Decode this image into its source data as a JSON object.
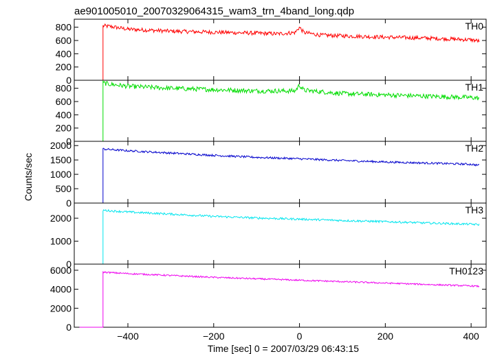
{
  "chart_data": {
    "type": "line",
    "title": "ae901005010_20070329064315_wam3_trn_4band_long.qdp",
    "xlabel": "Time [sec] 0 = 2007/03/29 06:43:15",
    "ylabel": "Counts/sec",
    "xlim": [
      -525,
      435
    ],
    "x_ticks": [
      -400,
      -200,
      0,
      200,
      400
    ],
    "onset_time": -458,
    "panels": [
      {
        "name": "TH0",
        "color": "#ff0000",
        "ylim": [
          0,
          900
        ],
        "y_ticks": [
          0,
          200,
          400,
          600,
          800
        ],
        "pre_level": 0,
        "noise": 30,
        "x": [
          -458,
          -440,
          -400,
          -300,
          -200,
          -100,
          -50,
          -10,
          0,
          10,
          50,
          100,
          200,
          300,
          400,
          420
        ],
        "y": [
          820,
          810,
          770,
          740,
          725,
          710,
          700,
          720,
          800,
          720,
          680,
          670,
          650,
          635,
          610,
          590
        ]
      },
      {
        "name": "TH1",
        "color": "#00dd00",
        "ylim": [
          0,
          900
        ],
        "y_ticks": [
          0,
          200,
          400,
          600,
          800
        ],
        "pre_level": 0,
        "noise": 35,
        "x": [
          -458,
          -440,
          -400,
          -300,
          -200,
          -100,
          -10,
          0,
          10,
          100,
          200,
          300,
          400,
          420
        ],
        "y": [
          880,
          860,
          830,
          800,
          780,
          760,
          760,
          850,
          770,
          720,
          700,
          680,
          660,
          650
        ]
      },
      {
        "name": "TH2",
        "color": "#0000cc",
        "ylim": [
          0,
          2100
        ],
        "y_ticks": [
          0,
          500,
          1000,
          1500,
          2000
        ],
        "pre_level": 0,
        "noise": 35,
        "x": [
          -458,
          -440,
          -400,
          -300,
          -200,
          -100,
          0,
          100,
          200,
          300,
          400,
          420
        ],
        "y": [
          1880,
          1860,
          1820,
          1740,
          1660,
          1590,
          1540,
          1480,
          1430,
          1390,
          1350,
          1310
        ]
      },
      {
        "name": "TH3",
        "color": "#00e5ee",
        "ylim": [
          0,
          2600
        ],
        "y_ticks": [
          0,
          1000,
          2000
        ],
        "pre_level": 0,
        "noise": 45,
        "x": [
          -458,
          -440,
          -400,
          -300,
          -200,
          -100,
          0,
          100,
          200,
          300,
          400,
          420
        ],
        "y": [
          2350,
          2320,
          2270,
          2180,
          2080,
          2010,
          1960,
          1900,
          1850,
          1790,
          1740,
          1720
        ]
      },
      {
        "name": "TH0123",
        "color": "#ee00ee",
        "ylim": [
          0,
          6500
        ],
        "y_ticks": [
          0,
          2000,
          4000,
          6000
        ],
        "pre_level": 0,
        "noise": 80,
        "x": [
          -458,
          -440,
          -400,
          -300,
          -200,
          -100,
          0,
          100,
          200,
          300,
          400,
          420
        ],
        "y": [
          5800,
          5750,
          5650,
          5450,
          5250,
          5100,
          4950,
          4800,
          4650,
          4500,
          4350,
          4300
        ]
      }
    ]
  }
}
